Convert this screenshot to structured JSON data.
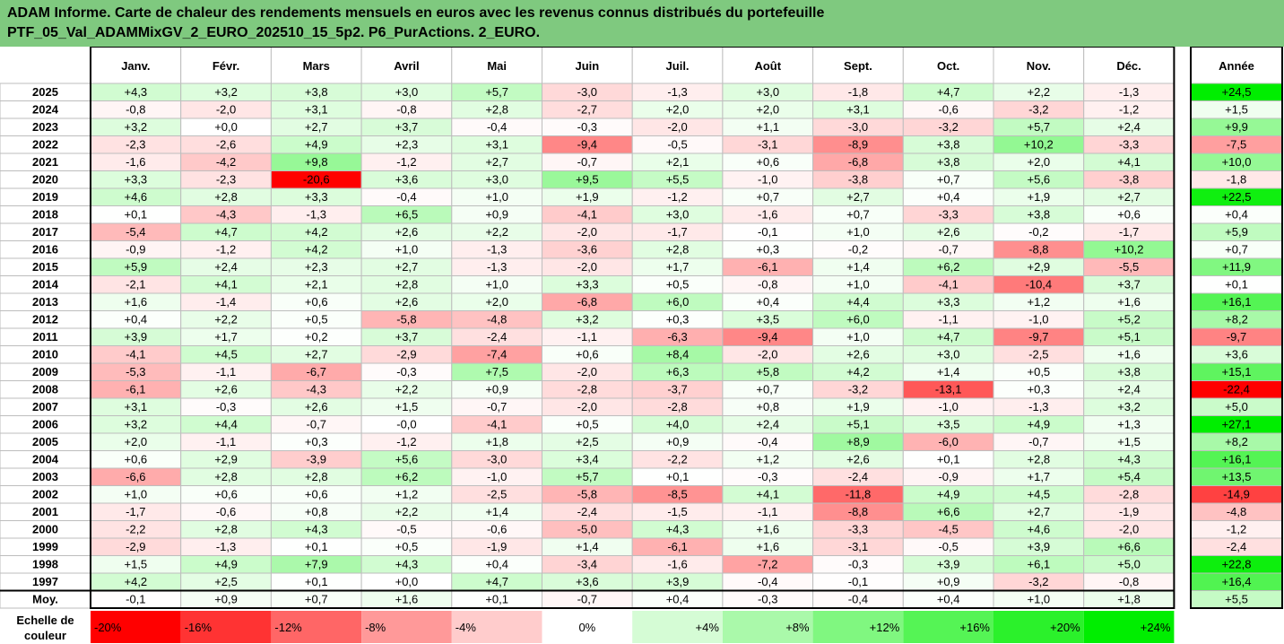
{
  "header": {
    "title_line1": "ADAM Informe. Carte de chaleur des rendements mensuels en euros avec les revenus connus distribués du portefeuille",
    "title_line2": "PTF_05_Val_ADAMMixGV_2_EURO_202510_15_5p2. P6_PurActions. 2_EURO."
  },
  "chart_data": {
    "type": "heatmap",
    "columns": [
      "Janv.",
      "Févr.",
      "Mars",
      "Avril",
      "Mai",
      "Juin",
      "Juil.",
      "Août",
      "Sept.",
      "Oct.",
      "Nov.",
      "Déc."
    ],
    "total_column": "Année",
    "rows": [
      {
        "year": "2025",
        "values": [
          "+4,3",
          "+3,2",
          "+3,8",
          "+3,0",
          "+5,7",
          "-3,0",
          "-1,3",
          "+3,0",
          "-1,8",
          "+4,7",
          "+2,2",
          "-1,3"
        ],
        "total": "+24,5"
      },
      {
        "year": "2024",
        "values": [
          "-0,8",
          "-2,0",
          "+3,1",
          "-0,8",
          "+2,8",
          "-2,7",
          "+2,0",
          "+2,0",
          "+3,1",
          "-0,6",
          "-3,2",
          "-1,2"
        ],
        "total": "+1,5"
      },
      {
        "year": "2023",
        "values": [
          "+3,2",
          "+0,0",
          "+2,7",
          "+3,7",
          "-0,4",
          "-0,3",
          "-2,0",
          "+1,1",
          "-3,0",
          "-3,2",
          "+5,7",
          "+2,4"
        ],
        "total": "+9,9"
      },
      {
        "year": "2022",
        "values": [
          "-2,3",
          "-2,6",
          "+4,9",
          "+2,3",
          "+3,1",
          "-9,4",
          "-0,5",
          "-3,1",
          "-8,9",
          "+3,8",
          "+10,2",
          "-3,3"
        ],
        "total": "-7,5"
      },
      {
        "year": "2021",
        "values": [
          "-1,6",
          "-4,2",
          "+9,8",
          "-1,2",
          "+2,7",
          "-0,7",
          "+2,1",
          "+0,6",
          "-6,8",
          "+3,8",
          "+2,0",
          "+4,1"
        ],
        "total": "+10,0"
      },
      {
        "year": "2020",
        "values": [
          "+3,3",
          "-2,3",
          "-20,6",
          "+3,6",
          "+3,0",
          "+9,5",
          "+5,5",
          "-1,0",
          "-3,8",
          "+0,7",
          "+5,6",
          "-3,8"
        ],
        "total": "-1,8"
      },
      {
        "year": "2019",
        "values": [
          "+4,6",
          "+2,8",
          "+3,3",
          "-0,4",
          "+1,0",
          "+1,9",
          "-1,2",
          "+0,7",
          "+2,7",
          "+0,4",
          "+1,9",
          "+2,7"
        ],
        "total": "+22,5"
      },
      {
        "year": "2018",
        "values": [
          "+0,1",
          "-4,3",
          "-1,3",
          "+6,5",
          "+0,9",
          "-4,1",
          "+3,0",
          "-1,6",
          "+0,7",
          "-3,3",
          "+3,8",
          "+0,6"
        ],
        "total": "+0,4"
      },
      {
        "year": "2017",
        "values": [
          "-5,4",
          "+4,7",
          "+4,2",
          "+2,6",
          "+2,2",
          "-2,0",
          "-1,7",
          "-0,1",
          "+1,0",
          "+2,6",
          "-0,2",
          "-1,7"
        ],
        "total": "+5,9"
      },
      {
        "year": "2016",
        "values": [
          "-0,9",
          "-1,2",
          "+4,2",
          "+1,0",
          "-1,3",
          "-3,6",
          "+2,8",
          "+0,3",
          "-0,2",
          "-0,7",
          "-8,8",
          "+10,2"
        ],
        "total": "+0,7"
      },
      {
        "year": "2015",
        "values": [
          "+5,9",
          "+2,4",
          "+2,3",
          "+2,7",
          "-1,3",
          "-2,0",
          "+1,7",
          "-6,1",
          "+1,4",
          "+6,2",
          "+2,9",
          "-5,5"
        ],
        "total": "+11,9"
      },
      {
        "year": "2014",
        "values": [
          "-2,1",
          "+4,1",
          "+2,1",
          "+2,8",
          "+1,0",
          "+3,3",
          "+0,5",
          "-0,8",
          "+1,0",
          "-4,1",
          "-10,4",
          "+3,7"
        ],
        "total": "+0,1"
      },
      {
        "year": "2013",
        "values": [
          "+1,6",
          "-1,4",
          "+0,6",
          "+2,6",
          "+2,0",
          "-6,8",
          "+6,0",
          "+0,4",
          "+4,4",
          "+3,3",
          "+1,2",
          "+1,6"
        ],
        "total": "+16,1"
      },
      {
        "year": "2012",
        "values": [
          "+0,4",
          "+2,2",
          "+0,5",
          "-5,8",
          "-4,8",
          "+3,2",
          "+0,3",
          "+3,5",
          "+6,0",
          "-1,1",
          "-1,0",
          "+5,2"
        ],
        "total": "+8,2"
      },
      {
        "year": "2011",
        "values": [
          "+3,9",
          "+1,7",
          "+0,2",
          "+3,7",
          "-2,4",
          "-1,1",
          "-6,3",
          "-9,4",
          "+1,0",
          "+4,7",
          "-9,7",
          "+5,1"
        ],
        "total": "-9,7"
      },
      {
        "year": "2010",
        "values": [
          "-4,1",
          "+4,5",
          "+2,7",
          "-2,9",
          "-7,4",
          "+0,6",
          "+8,4",
          "-2,0",
          "+2,6",
          "+3,0",
          "-2,5",
          "+1,6"
        ],
        "total": "+3,6"
      },
      {
        "year": "2009",
        "values": [
          "-5,3",
          "-1,1",
          "-6,7",
          "-0,3",
          "+7,5",
          "-2,0",
          "+6,3",
          "+5,8",
          "+4,2",
          "+1,4",
          "+0,5",
          "+3,8"
        ],
        "total": "+15,1"
      },
      {
        "year": "2008",
        "values": [
          "-6,1",
          "+2,6",
          "-4,3",
          "+2,2",
          "+0,9",
          "-2,8",
          "-3,7",
          "+0,7",
          "-3,2",
          "-13,1",
          "+0,3",
          "+2,4"
        ],
        "total": "-22,4"
      },
      {
        "year": "2007",
        "values": [
          "+3,1",
          "-0,3",
          "+2,6",
          "+1,5",
          "-0,7",
          "-2,0",
          "-2,8",
          "+0,8",
          "+1,9",
          "-1,0",
          "-1,3",
          "+3,2"
        ],
        "total": "+5,0"
      },
      {
        "year": "2006",
        "values": [
          "+3,2",
          "+4,4",
          "-0,7",
          "-0,0",
          "-4,1",
          "+0,5",
          "+4,0",
          "+2,4",
          "+5,1",
          "+3,5",
          "+4,9",
          "+1,3"
        ],
        "total": "+27,1"
      },
      {
        "year": "2005",
        "values": [
          "+2,0",
          "-1,1",
          "+0,3",
          "-1,2",
          "+1,8",
          "+2,5",
          "+0,9",
          "-0,4",
          "+8,9",
          "-6,0",
          "-0,7",
          "+1,5"
        ],
        "total": "+8,2"
      },
      {
        "year": "2004",
        "values": [
          "+0,6",
          "+2,9",
          "-3,9",
          "+5,6",
          "-3,0",
          "+3,4",
          "-2,2",
          "+1,2",
          "+2,6",
          "+0,1",
          "+2,8",
          "+4,3"
        ],
        "total": "+16,1"
      },
      {
        "year": "2003",
        "values": [
          "-6,6",
          "+2,8",
          "+2,8",
          "+6,2",
          "-1,0",
          "+5,7",
          "+0,1",
          "-0,3",
          "-2,4",
          "-0,9",
          "+1,7",
          "+5,4"
        ],
        "total": "+13,5"
      },
      {
        "year": "2002",
        "values": [
          "+1,0",
          "+0,6",
          "+0,6",
          "+1,2",
          "-2,5",
          "-5,8",
          "-8,5",
          "+4,1",
          "-11,8",
          "+4,9",
          "+4,5",
          "-2,8"
        ],
        "total": "-14,9"
      },
      {
        "year": "2001",
        "values": [
          "-1,7",
          "-0,6",
          "+0,8",
          "+2,2",
          "+1,4",
          "-2,4",
          "-1,5",
          "-1,1",
          "-8,8",
          "+6,6",
          "+2,7",
          "-1,9"
        ],
        "total": "-4,8"
      },
      {
        "year": "2000",
        "values": [
          "-2,2",
          "+2,8",
          "+4,3",
          "-0,5",
          "-0,6",
          "-5,0",
          "+4,3",
          "+1,6",
          "-3,3",
          "-4,5",
          "+4,6",
          "-2,0"
        ],
        "total": "-1,2"
      },
      {
        "year": "1999",
        "values": [
          "-2,9",
          "-1,3",
          "+0,1",
          "+0,5",
          "-1,9",
          "+1,4",
          "-6,1",
          "+1,6",
          "-3,1",
          "-0,5",
          "+3,9",
          "+6,6"
        ],
        "total": "-2,4"
      },
      {
        "year": "1998",
        "values": [
          "+1,5",
          "+4,9",
          "+7,9",
          "+4,3",
          "+0,4",
          "-3,4",
          "-1,6",
          "-7,2",
          "-0,3",
          "+3,9",
          "+6,1",
          "+5,0"
        ],
        "total": "+22,8"
      },
      {
        "year": "1997",
        "values": [
          "+4,2",
          "+2,5",
          "+0,1",
          "+0,0",
          "+4,7",
          "+3,6",
          "+3,9",
          "-0,4",
          "-0,1",
          "+0,9",
          "-3,2",
          "-0,8"
        ],
        "total": "+16,4"
      }
    ],
    "average_row": {
      "label": "Moy.",
      "values": [
        "-0,1",
        "+0,9",
        "+0,7",
        "+1,6",
        "+0,1",
        "-0,7",
        "+0,4",
        "-0,3",
        "-0,4",
        "+0,4",
        "+1,0",
        "+1,8"
      ],
      "total": "+5,5"
    },
    "scale": {
      "label": "Echelle de couleur",
      "stops": [
        {
          "label": "-20%",
          "value": -20
        },
        {
          "label": "-16%",
          "value": -16
        },
        {
          "label": "-12%",
          "value": -12
        },
        {
          "label": "-8%",
          "value": -8
        },
        {
          "label": "-4%",
          "value": -4
        },
        {
          "label": "0%",
          "value": 0
        },
        {
          "label": "+4%",
          "value": 4
        },
        {
          "label": "+8%",
          "value": 8
        },
        {
          "label": "+12%",
          "value": 12
        },
        {
          "label": "+16%",
          "value": 16
        },
        {
          "label": "+20%",
          "value": 20
        },
        {
          "label": "+24%",
          "value": 24
        }
      ]
    },
    "color_scale": {
      "negative_max": "#ff0000",
      "positive_max": "#00ee00",
      "neutral": "#ffffff",
      "min": -20,
      "max": 24
    }
  }
}
